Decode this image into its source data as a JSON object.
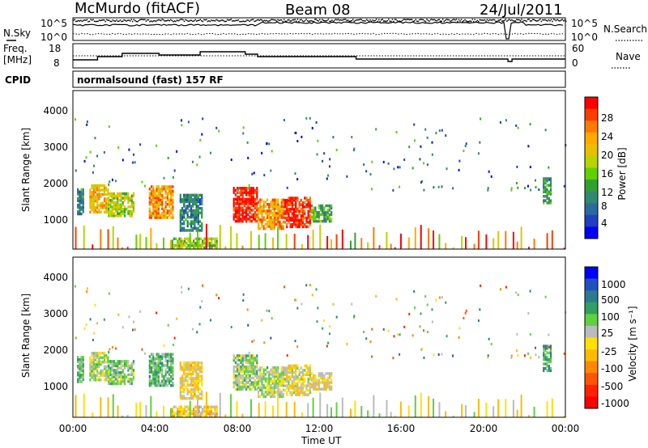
{
  "header": {
    "station": "McMurdo (fitACF)",
    "beam": "Beam 08",
    "date": "24/Jul/2011"
  },
  "panels": {
    "nsky": {
      "left_label": "N.Sky",
      "right_label": "N.Search",
      "left_ticks": [
        "10^5",
        "10^0"
      ],
      "right_ticks": [
        "10^5",
        "10^0"
      ]
    },
    "freq": {
      "left_label_1": "Freq.",
      "left_label_2": "[MHz]",
      "right_label": "Nave",
      "left_ticks": [
        "18",
        "8"
      ],
      "right_ticks": [
        "60",
        "0"
      ]
    },
    "cpid": {
      "label": "CPID",
      "mode": "normalsound (fast) 157 RF"
    },
    "power": {
      "ylabel": "Slant Range [km]",
      "cbar_label": "Power [dB]",
      "yticks": [
        "4000",
        "3000",
        "2000",
        "1000"
      ],
      "cbar_ticks": [
        "28",
        "24",
        "20",
        "16",
        "12",
        "8",
        "4"
      ],
      "cbar_colors": [
        "#ff0000",
        "#ff3c00",
        "#ff7a00",
        "#ffaa00",
        "#e8c000",
        "#b8d400",
        "#60d000",
        "#30a030",
        "#2f8a70",
        "#2b6aa0",
        "#2040c0",
        "#0000ff"
      ]
    },
    "velocity": {
      "ylabel": "Slant Range [km]",
      "cbar_label": "Velocity [m s⁻¹]",
      "yticks": [
        "4000",
        "3000",
        "2000",
        "1000"
      ],
      "cbar_ticks": [
        "1000",
        "500",
        "100",
        "25",
        "-25",
        "-100",
        "-500",
        "-1000"
      ],
      "cbar_colors": [
        "#0000ff",
        "#2050c0",
        "#2a7a90",
        "#30a060",
        "#60d040",
        "#bbbbbb",
        "#ffe000",
        "#ffbb00",
        "#ff8800",
        "#ff5500",
        "#ff2200",
        "#ff0000"
      ]
    }
  },
  "xaxis": {
    "label": "Time UT",
    "ticks": [
      "00:00",
      "04:00",
      "08:00",
      "12:00",
      "16:00",
      "20:00",
      "00:00"
    ]
  },
  "chart_data": {
    "type": "heatmap",
    "title": "McMurdo (fitACF)",
    "subtitle": "Beam 08",
    "date": "24/Jul/2011",
    "xlabel": "Time UT",
    "ylabel": "Slant Range [km]",
    "xlim_hours": [
      0,
      24
    ],
    "ylim_km": [
      180,
      4500
    ],
    "xticks_hours": [
      0,
      4,
      8,
      12,
      16,
      20,
      24
    ],
    "yticks_km": [
      1000,
      2000,
      3000,
      4000
    ],
    "power_db_range": [
      0,
      30
    ],
    "velocity_range": [
      -1000,
      1000
    ],
    "scatter_patches": [
      {
        "t0": 0.2,
        "t1": 0.5,
        "r0": 1100,
        "r1": 1800,
        "power": 8,
        "velocity": 300
      },
      {
        "t0": 0.8,
        "t1": 1.7,
        "r0": 1150,
        "r1": 1900,
        "power": 20,
        "velocity": 100
      },
      {
        "t0": 1.7,
        "t1": 3.0,
        "r0": 1050,
        "r1": 1700,
        "power": 16,
        "velocity": 200
      },
      {
        "t0": 3.7,
        "t1": 4.9,
        "r0": 1000,
        "r1": 1900,
        "power": 22,
        "velocity": 300
      },
      {
        "t0": 5.2,
        "t1": 6.3,
        "r0": 650,
        "r1": 1650,
        "power": 8,
        "velocity": -100
      },
      {
        "t0": 4.8,
        "t1": 7.0,
        "r0": 180,
        "r1": 450,
        "power": 14,
        "velocity": -150
      },
      {
        "t0": 7.8,
        "t1": 9.0,
        "r0": 900,
        "r1": 1850,
        "power": 28,
        "velocity": 150
      },
      {
        "t0": 9.0,
        "t1": 10.3,
        "r0": 700,
        "r1": 1500,
        "power": 22,
        "velocity": 100
      },
      {
        "t0": 10.3,
        "t1": 11.6,
        "r0": 750,
        "r1": 1550,
        "power": 28,
        "velocity": -50
      },
      {
        "t0": 11.6,
        "t1": 12.6,
        "r0": 900,
        "r1": 1350,
        "power": 12,
        "velocity": -100
      },
      {
        "t0": 22.9,
        "t1": 23.3,
        "r0": 1400,
        "r1": 2100,
        "power": 10,
        "velocity": 400
      }
    ]
  }
}
